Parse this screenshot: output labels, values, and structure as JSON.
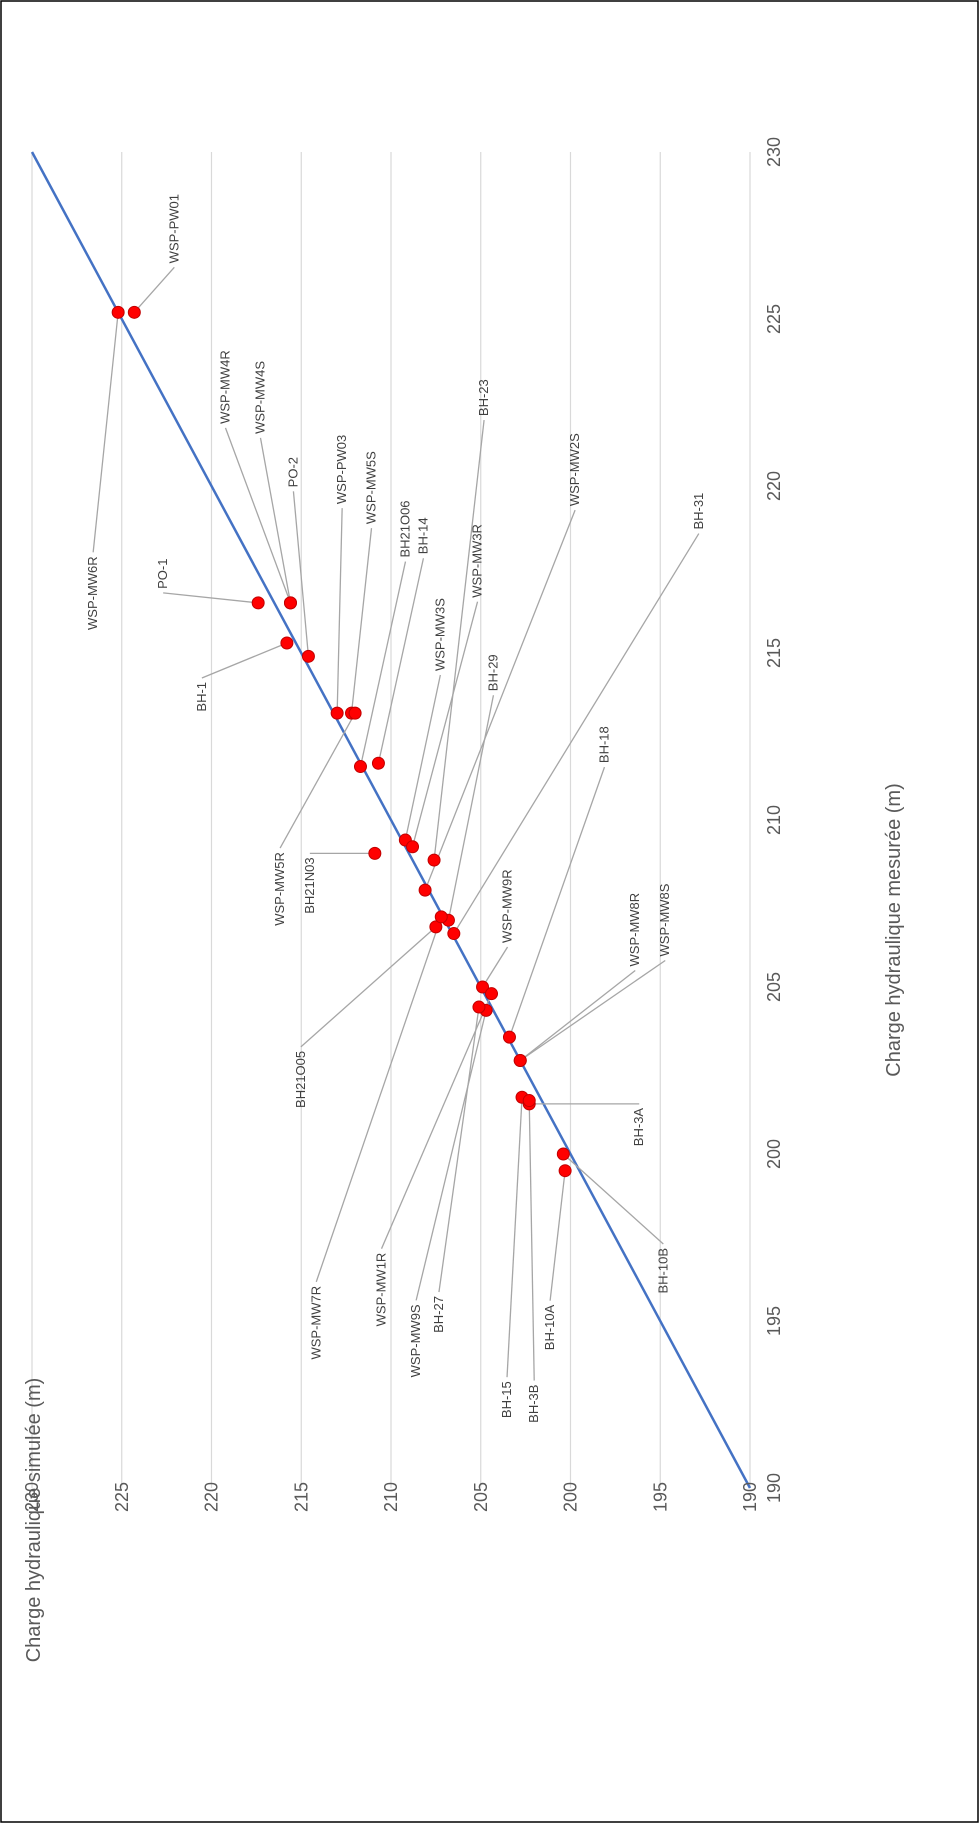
{
  "chart_data": {
    "type": "scatter",
    "title": "",
    "xlabel": "Charge hydraulique mesurée (m)",
    "ylabel": "Charge hydraulique simulée (m)",
    "xlim": [
      190,
      230
    ],
    "ylim": [
      190,
      230
    ],
    "x_ticks": [
      190,
      195,
      200,
      205,
      210,
      215,
      220,
      225,
      230
    ],
    "y_ticks": [
      190,
      195,
      200,
      205,
      210,
      215,
      220,
      225,
      230
    ],
    "grid": true,
    "reference_line": {
      "from": [
        190,
        190
      ],
      "to": [
        230,
        230
      ],
      "color": "#4472C4"
    },
    "marker_color": "#FF0000",
    "series": [
      {
        "points": [
          {
            "label": "WSP-MW6R",
            "x": 225.2,
            "y": 225.2
          },
          {
            "label": "WSP-PW01",
            "x": 225.2,
            "y": 224.3
          },
          {
            "label": "WSP-MW4R",
            "x": 216.5,
            "y": 215.6
          },
          {
            "label": "WSP-MW4S",
            "x": 216.5,
            "y": 215.6
          },
          {
            "label": "PO-1",
            "x": 216.5,
            "y": 217.4
          },
          {
            "label": "PO-2",
            "x": 214.9,
            "y": 214.6
          },
          {
            "label": "BH-1",
            "x": 215.3,
            "y": 215.8
          },
          {
            "label": "WSP-PW03",
            "x": 213.2,
            "y": 213.0
          },
          {
            "label": "WSP-MW5S",
            "x": 213.2,
            "y": 212.2
          },
          {
            "label": "WSP-MW5R",
            "x": 213.2,
            "y": 212.0
          },
          {
            "label": "BH21O06",
            "x": 211.6,
            "y": 211.7
          },
          {
            "label": "BH-14",
            "x": 211.7,
            "y": 210.7
          },
          {
            "label": "WSP-MW3S",
            "x": 209.4,
            "y": 209.2
          },
          {
            "label": "WSP-MW3R",
            "x": 209.2,
            "y": 208.8
          },
          {
            "label": "BH21N03",
            "x": 209.0,
            "y": 210.9
          },
          {
            "label": "BH-23",
            "x": 208.8,
            "y": 207.6
          },
          {
            "label": "WSP-MW2S",
            "x": 207.9,
            "y": 208.1
          },
          {
            "label": "BH-29",
            "x": 207.0,
            "y": 206.8
          },
          {
            "label": "BH21O05",
            "x": 206.8,
            "y": 207.5
          },
          {
            "label": "WSP-MW7R",
            "x": 207.1,
            "y": 207.2
          },
          {
            "label": "BH-31",
            "x": 206.6,
            "y": 206.5
          },
          {
            "label": "WSP-MW9R",
            "x": 205.0,
            "y": 204.9
          },
          {
            "label": "WSP-MW1R",
            "x": 204.8,
            "y": 204.4
          },
          {
            "label": "WSP-MW9S",
            "x": 204.3,
            "y": 204.7
          },
          {
            "label": "BH-27",
            "x": 204.4,
            "y": 205.1
          },
          {
            "label": "BH-18",
            "x": 203.5,
            "y": 203.4
          },
          {
            "label": "WSP-MW8R",
            "x": 202.8,
            "y": 202.8
          },
          {
            "label": "WSP-MW8S",
            "x": 202.8,
            "y": 202.8
          },
          {
            "label": "BH-15",
            "x": 201.7,
            "y": 202.7
          },
          {
            "label": "BH-3A",
            "x": 201.5,
            "y": 202.3
          },
          {
            "label": "BH-3B",
            "x": 201.6,
            "y": 202.3
          },
          {
            "label": "BH-10B",
            "x": 200.0,
            "y": 200.4
          },
          {
            "label": "BH-10A",
            "x": 199.5,
            "y": 200.3
          }
        ]
      }
    ]
  }
}
